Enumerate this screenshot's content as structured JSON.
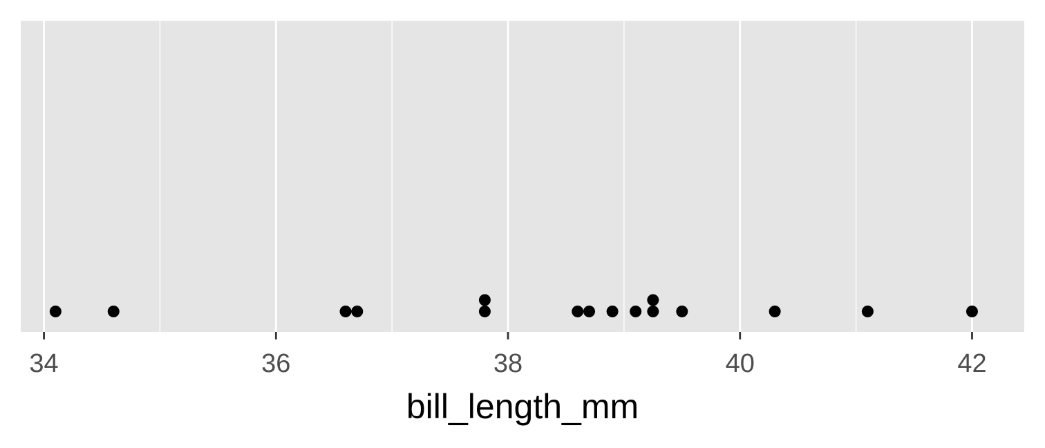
{
  "chart_data": {
    "type": "dotplot",
    "xlabel": "bill_length_mm",
    "ylabel": "",
    "xlim": [
      33.8,
      42.45
    ],
    "x_ticks": [
      34,
      36,
      38,
      40,
      42
    ],
    "x_tick_labels": [
      "34",
      "36",
      "38",
      "40",
      "42"
    ],
    "x_minor_ticks": [
      35,
      37,
      39,
      41
    ],
    "grid": true,
    "background": "#e5e5e5",
    "point_color": "#000000",
    "points": [
      {
        "x": 34.1,
        "stack": 1
      },
      {
        "x": 34.6,
        "stack": 1
      },
      {
        "x": 36.6,
        "stack": 1
      },
      {
        "x": 36.7,
        "stack": 1
      },
      {
        "x": 37.8,
        "stack": 1
      },
      {
        "x": 37.8,
        "stack": 2
      },
      {
        "x": 38.6,
        "stack": 1
      },
      {
        "x": 38.7,
        "stack": 1
      },
      {
        "x": 38.9,
        "stack": 1
      },
      {
        "x": 39.1,
        "stack": 1
      },
      {
        "x": 39.25,
        "stack": 1
      },
      {
        "x": 39.25,
        "stack": 2
      },
      {
        "x": 39.5,
        "stack": 1
      },
      {
        "x": 40.3,
        "stack": 1
      },
      {
        "x": 41.1,
        "stack": 1
      },
      {
        "x": 42.0,
        "stack": 1
      }
    ]
  }
}
